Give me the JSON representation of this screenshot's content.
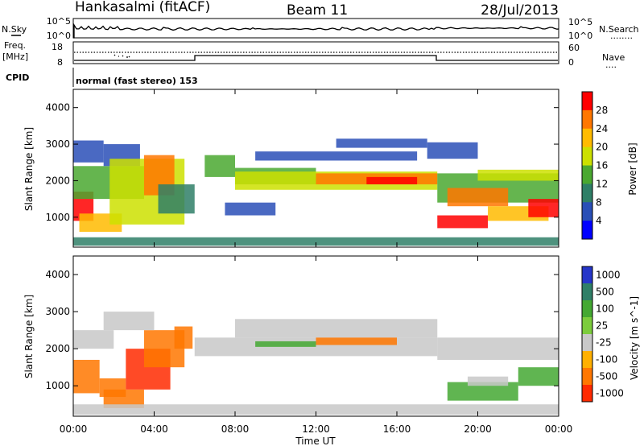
{
  "header": {
    "station": "Hankasalmi (fitACF)",
    "beam": "Beam 11",
    "date": "28/Jul/2013"
  },
  "left_labels": {
    "nsky": "N.Sky",
    "freq_line1": "Freq.",
    "freq_line2": "[MHz]",
    "cpid": "CPID"
  },
  "right_labels": {
    "nsearch": "N.Search",
    "nave": "Nave",
    "nsearch_dots": "........",
    "nave_dots": "...."
  },
  "strip_ticks": {
    "sky_top_left": "10^5",
    "sky_bottom_left": "10^0",
    "sky_top_right": "10^5",
    "sky_bottom_right": "10^0",
    "freq_top": "18",
    "freq_bottom": "8",
    "nave_top": "60",
    "nave_bottom": "0"
  },
  "cpid_text": "normal (fast stereo) 153",
  "chart_data": [
    {
      "type": "heatmap",
      "ylabel": "Slant Range [km]",
      "colorbar_label": "Power [dB]",
      "colorbar_ticks": [
        "28",
        "24",
        "20",
        "16",
        "12",
        "8",
        "4"
      ],
      "colors": [
        "#ff0000",
        "#ff7700",
        "#ffbb00",
        "#cce000",
        "#4aa830",
        "#2f7f67",
        "#2a4fb7",
        "#0000ff"
      ],
      "yticks": [
        "4000",
        "3000",
        "2000",
        "1000"
      ],
      "ylim": [
        180,
        4500
      ],
      "cells": [
        [
          0.0,
          1.0,
          900,
          1700,
          28
        ],
        [
          0.3,
          2.4,
          600,
          1100,
          20
        ],
        [
          0.0,
          3.5,
          1500,
          2400,
          14
        ],
        [
          1.5,
          3.3,
          2400,
          3000,
          8
        ],
        [
          0.0,
          1.5,
          2500,
          3100,
          6
        ],
        [
          1.8,
          5.5,
          800,
          2600,
          16
        ],
        [
          3.5,
          5.0,
          1600,
          2700,
          22
        ],
        [
          4.2,
          6.0,
          1100,
          1900,
          10
        ],
        [
          6.5,
          8.0,
          2100,
          2700,
          14
        ],
        [
          8.0,
          12.0,
          1900,
          2350,
          12
        ],
        [
          8.0,
          18.0,
          1750,
          2250,
          18
        ],
        [
          12.0,
          18.0,
          1900,
          2200,
          22
        ],
        [
          14.5,
          17.0,
          1900,
          2100,
          26
        ],
        [
          9.0,
          17.0,
          2550,
          2800,
          6
        ],
        [
          13.0,
          17.5,
          2900,
          3150,
          5
        ],
        [
          7.5,
          10.0,
          1050,
          1400,
          5
        ],
        [
          18.0,
          24.0,
          1400,
          2200,
          14
        ],
        [
          18.5,
          21.5,
          1300,
          1800,
          22
        ],
        [
          20.0,
          24.0,
          2000,
          2300,
          18
        ],
        [
          18.0,
          20.5,
          700,
          1050,
          26
        ],
        [
          20.5,
          23.5,
          900,
          1300,
          20
        ],
        [
          22.5,
          24.0,
          1000,
          1500,
          28
        ],
        [
          17.5,
          20.0,
          2600,
          3050,
          6
        ],
        [
          0.0,
          24.0,
          220,
          450,
          10
        ]
      ]
    },
    {
      "type": "heatmap",
      "ylabel": "Slant Range [km]",
      "colorbar_label": "Velocity [m s^-1]",
      "colorbar_ticks": [
        "1000",
        "500",
        "100",
        "25",
        "-25",
        "-100",
        "-500",
        "-1000"
      ],
      "colors": [
        "#2636c9",
        "#2f7f67",
        "#44a832",
        "#7ccc3c",
        "#c8c8c8",
        "#ffb000",
        "#ff7700",
        "#ff2a00"
      ],
      "yticks": [
        "4000",
        "3000",
        "2000",
        "1000"
      ],
      "ylim": [
        180,
        4500
      ],
      "cells": [
        [
          0.0,
          1.3,
          800,
          1700,
          -400
        ],
        [
          1.3,
          2.6,
          700,
          1200,
          -200
        ],
        [
          1.5,
          3.5,
          400,
          900,
          -150
        ],
        [
          2.6,
          4.8,
          900,
          2000,
          -500
        ],
        [
          3.5,
          5.5,
          1500,
          2500,
          -400
        ],
        [
          5.0,
          5.9,
          2000,
          2600,
          -300
        ],
        [
          0.0,
          2.0,
          2000,
          2500,
          0
        ],
        [
          1.5,
          4.0,
          2500,
          3000,
          0
        ],
        [
          6.0,
          18.0,
          1800,
          2300,
          0
        ],
        [
          8.0,
          18.0,
          2300,
          2800,
          0
        ],
        [
          9.0,
          12.0,
          2050,
          2200,
          150
        ],
        [
          12.0,
          16.0,
          2100,
          2300,
          -120
        ],
        [
          18.0,
          24.0,
          1700,
          2300,
          0
        ],
        [
          18.5,
          22.0,
          600,
          1100,
          150
        ],
        [
          22.0,
          24.0,
          1000,
          1500,
          150
        ],
        [
          19.5,
          21.5,
          1000,
          1250,
          0
        ],
        [
          0.0,
          24.0,
          220,
          500,
          0
        ]
      ]
    }
  ],
  "x_axis": {
    "ticks": [
      "00:00",
      "04:00",
      "08:00",
      "12:00",
      "16:00",
      "20:00",
      "00:00"
    ],
    "label": "Time UT"
  }
}
